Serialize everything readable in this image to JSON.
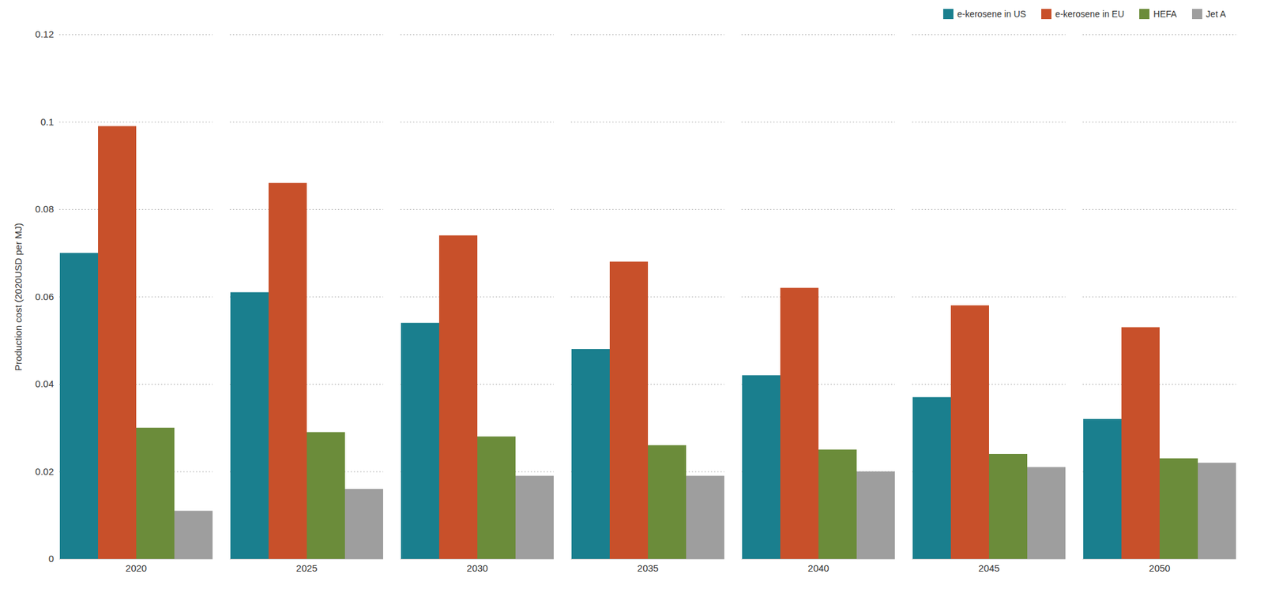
{
  "chart_data": {
    "type": "bar",
    "categories": [
      "2020",
      "2025",
      "2030",
      "2035",
      "2040",
      "2045",
      "2050"
    ],
    "series": [
      {
        "name": "e-kerosene in US",
        "color": "#1a7f8e",
        "values": [
          0.07,
          0.061,
          0.054,
          0.048,
          0.042,
          0.037,
          0.032
        ]
      },
      {
        "name": "e-kerosene in EU",
        "color": "#c8502a",
        "values": [
          0.099,
          0.086,
          0.074,
          0.068,
          0.062,
          0.058,
          0.053
        ]
      },
      {
        "name": "HEFA",
        "color": "#6b8c3a",
        "values": [
          0.03,
          0.029,
          0.028,
          0.026,
          0.025,
          0.024,
          0.023
        ]
      },
      {
        "name": "Jet A",
        "color": "#9e9e9e",
        "values": [
          0.011,
          0.016,
          0.019,
          0.019,
          0.02,
          0.021,
          0.022
        ]
      }
    ],
    "ylabel": "Production cost (2020USD per MJ)",
    "ylim": [
      0,
      0.12
    ],
    "yticks": [
      0,
      0.02,
      0.04,
      0.06,
      0.08,
      0.1,
      0.12
    ],
    "grid": true,
    "legend": "upper right"
  }
}
